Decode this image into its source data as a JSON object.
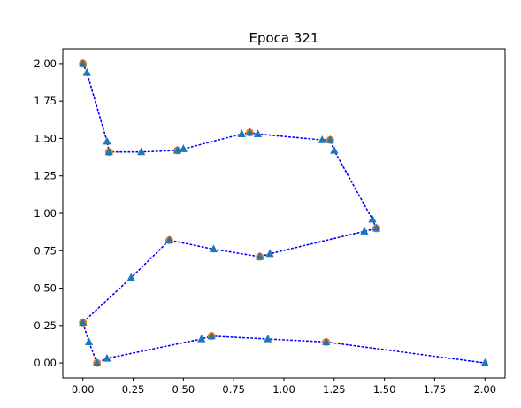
{
  "chart_data": {
    "type": "line",
    "title": "Epoca 321",
    "xlabel": "",
    "ylabel": "",
    "xlim": [
      -0.1,
      2.1
    ],
    "ylim": [
      -0.1,
      2.1
    ],
    "xticks": [
      "0.00",
      "0.25",
      "0.50",
      "0.75",
      "1.00",
      "1.25",
      "1.50",
      "1.75",
      "2.00"
    ],
    "yticks": [
      "0.00",
      "0.25",
      "0.50",
      "0.75",
      "1.00",
      "1.25",
      "1.50",
      "1.75",
      "2.00"
    ],
    "grid": false,
    "legend": "none",
    "series": [
      {
        "style": "dotted-line-triangles",
        "color": "#1f77b4",
        "line_color": "#0000ff",
        "points": [
          [
            0.0,
            2.0
          ],
          [
            0.02,
            1.94
          ],
          [
            0.12,
            1.48
          ],
          [
            0.13,
            1.41
          ],
          [
            0.29,
            1.41
          ],
          [
            0.47,
            1.42
          ],
          [
            0.5,
            1.43
          ],
          [
            0.79,
            1.53
          ],
          [
            0.83,
            1.54
          ],
          [
            0.87,
            1.53
          ],
          [
            1.19,
            1.49
          ],
          [
            1.23,
            1.49
          ],
          [
            1.25,
            1.42
          ],
          [
            1.44,
            0.96
          ],
          [
            1.46,
            0.9
          ],
          [
            1.4,
            0.88
          ],
          [
            0.93,
            0.73
          ],
          [
            0.88,
            0.71
          ],
          [
            0.65,
            0.76
          ],
          [
            0.43,
            0.82
          ],
          [
            0.24,
            0.57
          ],
          [
            0.0,
            0.27
          ],
          [
            0.03,
            0.14
          ],
          [
            0.07,
            0.0
          ],
          [
            0.12,
            0.03
          ],
          [
            0.59,
            0.16
          ],
          [
            0.64,
            0.18
          ],
          [
            0.92,
            0.16
          ],
          [
            1.21,
            0.14
          ],
          [
            2.0,
            0.0
          ]
        ]
      },
      {
        "style": "circles",
        "color": "#ff7f0e",
        "points": [
          [
            0.0,
            2.0
          ],
          [
            0.13,
            1.41
          ],
          [
            0.47,
            1.42
          ],
          [
            0.83,
            1.54
          ],
          [
            1.23,
            1.49
          ],
          [
            1.46,
            0.9
          ],
          [
            0.88,
            0.71
          ],
          [
            0.43,
            0.82
          ],
          [
            0.0,
            0.27
          ],
          [
            0.07,
            0.0
          ],
          [
            0.64,
            0.18
          ],
          [
            1.21,
            0.14
          ]
        ]
      }
    ]
  }
}
